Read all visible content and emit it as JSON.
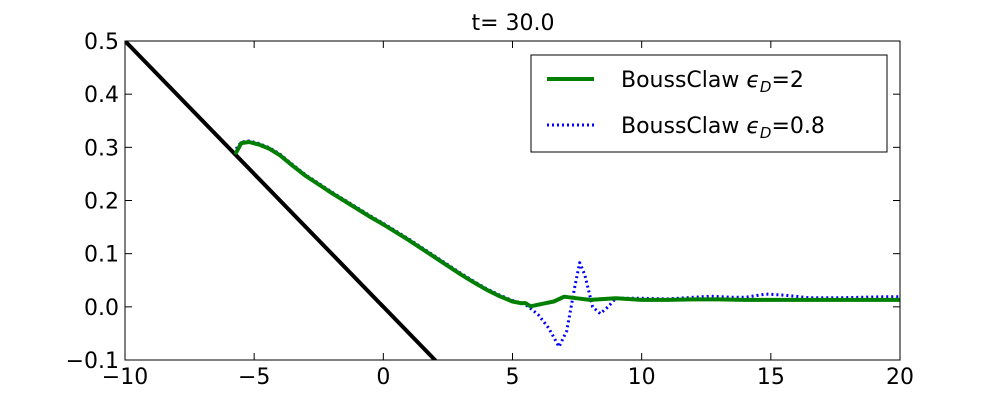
{
  "chart_data": {
    "type": "line",
    "title": "t= 30.0",
    "xlabel": "",
    "ylabel": "",
    "xlim": [
      -10,
      20
    ],
    "ylim": [
      -0.1,
      0.5
    ],
    "xticks": [
      -10,
      -5,
      0,
      5,
      10,
      15,
      20
    ],
    "xtick_labels": [
      "−10",
      "−5",
      "0",
      "5",
      "10",
      "15",
      "20"
    ],
    "yticks": [
      -0.1,
      0.0,
      0.1,
      0.2,
      0.3,
      0.4,
      0.5
    ],
    "ytick_labels": [
      "−0.1",
      "0.0",
      "0.1",
      "0.2",
      "0.3",
      "0.4",
      "0.5"
    ],
    "grid": false,
    "legend_position": "top-right",
    "series": [
      {
        "name": "BoussClaw εD=2",
        "legend_label": {
          "prefix": "BoussClaw ",
          "symbol": "ϵ",
          "subscript": "D",
          "suffix": "=2"
        },
        "color": "#007f00",
        "style": "solid",
        "x": [
          -5.7,
          -5.5,
          -5.2,
          -4.8,
          -4.4,
          -4.0,
          -3.5,
          -3.0,
          -2.5,
          -2.0,
          -1.5,
          -1.0,
          -0.5,
          0.0,
          0.5,
          1.0,
          1.5,
          2.0,
          2.5,
          3.0,
          3.5,
          4.0,
          4.5,
          5.0,
          5.3,
          5.5,
          5.7,
          6.0,
          6.3,
          6.6,
          7.0,
          7.5,
          8.0,
          9.0,
          10.0,
          11.0,
          12.0,
          13.0,
          14.0,
          15.0,
          16.0,
          17.0,
          18.0,
          19.0,
          20.0
        ],
        "y": [
          0.29,
          0.308,
          0.31,
          0.305,
          0.297,
          0.285,
          0.265,
          0.246,
          0.23,
          0.214,
          0.199,
          0.184,
          0.169,
          0.155,
          0.14,
          0.125,
          0.109,
          0.093,
          0.077,
          0.061,
          0.046,
          0.032,
          0.02,
          0.01,
          0.007,
          0.007,
          0.001,
          0.004,
          0.007,
          0.01,
          0.019,
          0.016,
          0.013,
          0.016,
          0.013,
          0.013,
          0.014,
          0.014,
          0.013,
          0.013,
          0.013,
          0.013,
          0.013,
          0.013,
          0.013
        ]
      },
      {
        "name": "BoussClaw εD=0.8",
        "legend_label": {
          "prefix": "BoussClaw ",
          "symbol": "ϵ",
          "subscript": "D",
          "suffix": "=0.8"
        },
        "color": "#0000ff",
        "style": "dotted",
        "x": [
          -5.7,
          -5.5,
          -5.2,
          -4.8,
          -4.4,
          -4.0,
          -3.5,
          -3.0,
          -2.5,
          -2.0,
          -1.5,
          -1.0,
          -0.5,
          0.0,
          0.5,
          1.0,
          1.5,
          2.0,
          2.5,
          3.0,
          3.5,
          4.0,
          4.5,
          5.0,
          5.3,
          5.6,
          6.0,
          6.4,
          6.8,
          7.1,
          7.4,
          7.6,
          7.8,
          8.1,
          8.4,
          8.7,
          9.0,
          10.0,
          11.0,
          12.0,
          12.7,
          13.5,
          14.0,
          14.8,
          15.5,
          16.5,
          17.5,
          18.5,
          19.5,
          20.0
        ],
        "y": [
          0.297,
          0.31,
          0.312,
          0.307,
          0.299,
          0.287,
          0.267,
          0.248,
          0.232,
          0.216,
          0.201,
          0.186,
          0.171,
          0.157,
          0.142,
          0.127,
          0.111,
          0.095,
          0.079,
          0.063,
          0.048,
          0.034,
          0.022,
          0.012,
          0.008,
          0.001,
          -0.015,
          -0.04,
          -0.075,
          -0.045,
          0.035,
          0.083,
          0.06,
          0.0,
          -0.013,
          0.0,
          0.016,
          0.016,
          0.015,
          0.018,
          0.02,
          0.018,
          0.018,
          0.024,
          0.022,
          0.017,
          0.017,
          0.018,
          0.019,
          0.019
        ]
      },
      {
        "name": "bathymetry",
        "color": "#000000",
        "style": "solid",
        "legend": false,
        "x": [
          -10,
          2
        ],
        "y": [
          0.5,
          -0.1
        ]
      }
    ]
  }
}
